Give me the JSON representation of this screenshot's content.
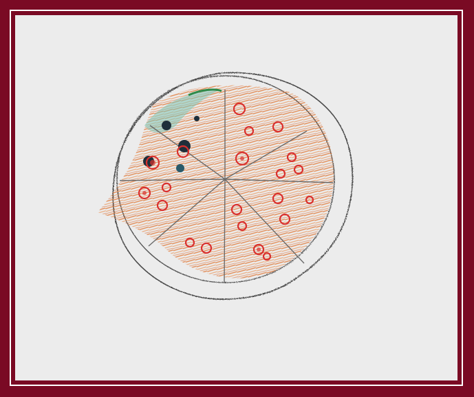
{
  "artwork": {
    "subject": "pizza",
    "frame_color": "#7a0a24",
    "paper_color": "#ececec",
    "crust_color": "#555555",
    "sauce_color": "#e07a3a",
    "topping_color": "#d9302e",
    "olive_color": "#1f2f3a",
    "basil_color": "#3a8a5a",
    "slice_count": 8
  }
}
